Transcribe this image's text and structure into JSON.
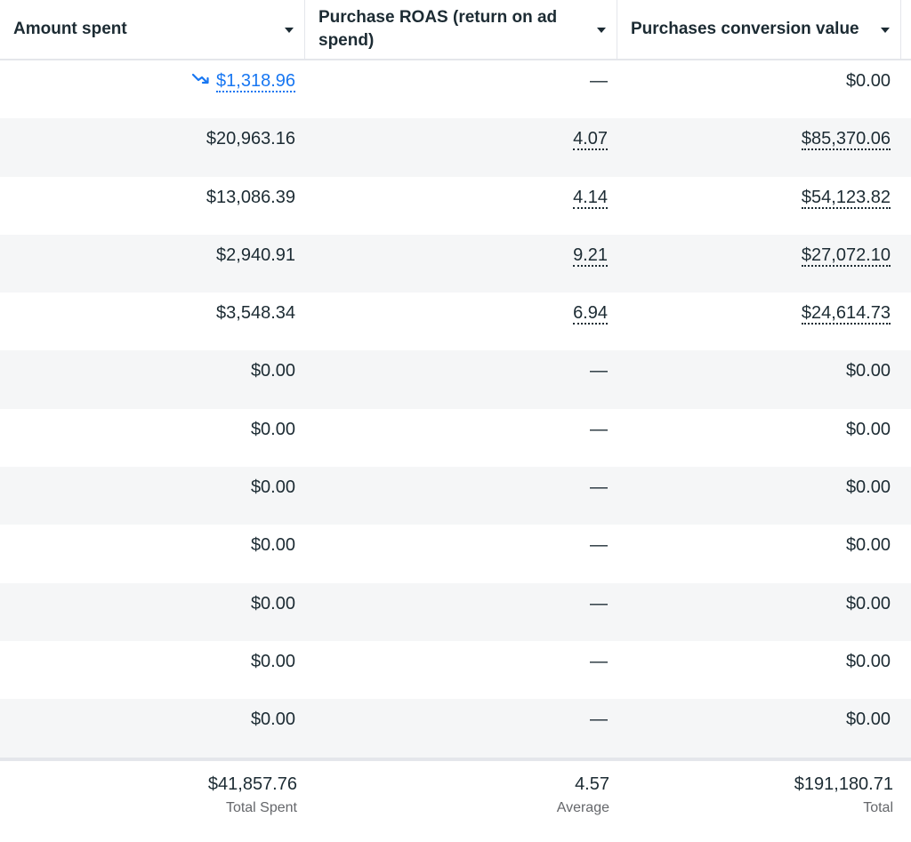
{
  "columns": [
    {
      "label": "Amount spent"
    },
    {
      "label": "Purchase ROAS (return on ad spend)"
    },
    {
      "label": "Purchases conversion value"
    }
  ],
  "rows": [
    {
      "amount": "$1,318.96",
      "amount_trend": "trending-down",
      "roas": "—",
      "value": "$0.00"
    },
    {
      "amount": "$20,963.16",
      "roas": "4.07",
      "value": "$85,370.06"
    },
    {
      "amount": "$13,086.39",
      "roas": "4.14",
      "value": "$54,123.82"
    },
    {
      "amount": "$2,940.91",
      "roas": "9.21",
      "value": "$27,072.10"
    },
    {
      "amount": "$3,548.34",
      "roas": "6.94",
      "value": "$24,614.73"
    },
    {
      "amount": "$0.00",
      "roas": "—",
      "value": "$0.00"
    },
    {
      "amount": "$0.00",
      "roas": "—",
      "value": "$0.00"
    },
    {
      "amount": "$0.00",
      "roas": "—",
      "value": "$0.00"
    },
    {
      "amount": "$0.00",
      "roas": "—",
      "value": "$0.00"
    },
    {
      "amount": "$0.00",
      "roas": "—",
      "value": "$0.00"
    },
    {
      "amount": "$0.00",
      "roas": "—",
      "value": "$0.00"
    },
    {
      "amount": "$0.00",
      "roas": "—",
      "value": "$0.00"
    }
  ],
  "totals": {
    "amount": {
      "value": "$41,857.76",
      "label": "Total Spent"
    },
    "roas": {
      "value": "4.57",
      "label": "Average"
    },
    "value": {
      "value": "$191,180.71",
      "label": "Total"
    }
  },
  "colors": {
    "text": "#1c2b33",
    "link": "#1877f2",
    "alt_row": "#f5f6f7",
    "border": "#e4e6eb",
    "muted": "#65676b"
  }
}
